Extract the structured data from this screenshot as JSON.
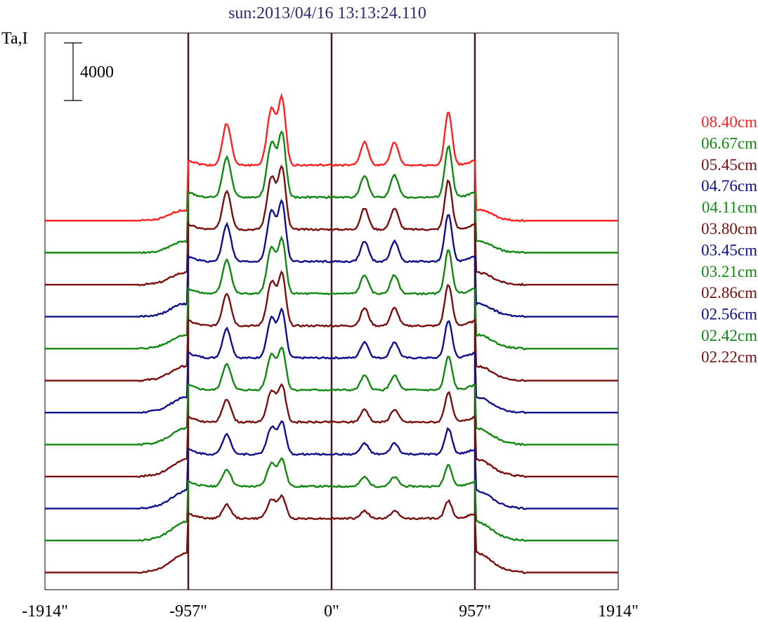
{
  "chart_data": {
    "type": "line",
    "title": "sun:2013/04/16 13:13:24.110",
    "ylabel": "Ta,I",
    "xlabel": "",
    "scale_bar_label": "4000",
    "scale_bar_value": 4000,
    "x_ticks": [
      {
        "value": -1914,
        "label": "-1914\""
      },
      {
        "value": -957,
        "label": "-957\""
      },
      {
        "value": 0,
        "label": "0\""
      },
      {
        "value": 957,
        "label": "957\""
      },
      {
        "value": 1914,
        "label": "1914\""
      }
    ],
    "xlim": [
      -1914,
      1914
    ],
    "vertical_markers": [
      -957,
      0,
      957
    ],
    "grid": false,
    "legend_position": "right",
    "series": [
      {
        "name": "08.40cm",
        "color": "#ff2020",
        "amp": 1.35,
        "tail": 0.1,
        "seed": 1
      },
      {
        "name": "06.67cm",
        "color": "#128712",
        "amp": 1.3,
        "tail": 0.12,
        "seed": 2
      },
      {
        "name": "05.45cm",
        "color": "#7a0f0f",
        "amp": 1.25,
        "tail": 0.14,
        "seed": 3
      },
      {
        "name": "04.76cm",
        "color": "#10108a",
        "amp": 1.2,
        "tail": 0.16,
        "seed": 4
      },
      {
        "name": "04.11cm",
        "color": "#128712",
        "amp": 1.1,
        "tail": 0.18,
        "seed": 5
      },
      {
        "name": "03.80cm",
        "color": "#7a0f0f",
        "amp": 1.05,
        "tail": 0.2,
        "seed": 6
      },
      {
        "name": "03.45cm",
        "color": "#10108a",
        "amp": 0.95,
        "tail": 0.22,
        "seed": 7
      },
      {
        "name": "03.21cm",
        "color": "#128712",
        "amp": 0.85,
        "tail": 0.24,
        "seed": 8
      },
      {
        "name": "02.86cm",
        "color": "#7a0f0f",
        "amp": 0.75,
        "tail": 0.26,
        "seed": 9
      },
      {
        "name": "02.56cm",
        "color": "#10108a",
        "amp": 0.65,
        "tail": 0.28,
        "seed": 10
      },
      {
        "name": "02.42cm",
        "color": "#128712",
        "amp": 0.55,
        "tail": 0.3,
        "seed": 11
      },
      {
        "name": "02.22cm",
        "color": "#7a0f0f",
        "amp": 0.45,
        "tail": 0.32,
        "seed": 12
      }
    ]
  }
}
